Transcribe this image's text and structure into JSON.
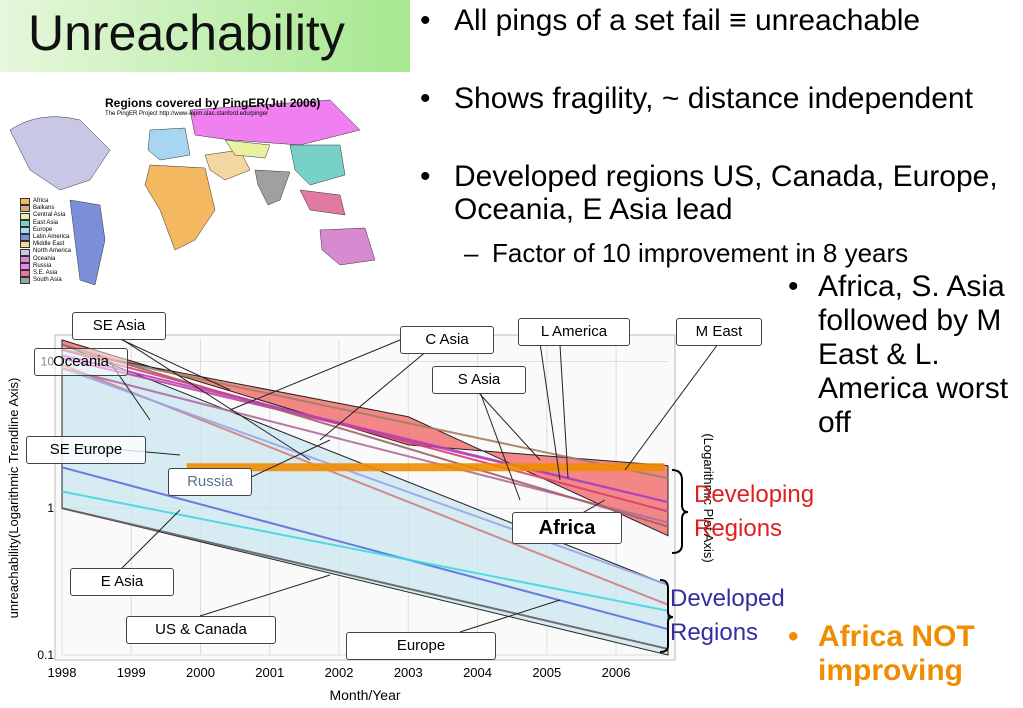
{
  "slide": {
    "title": "Unreachability",
    "bullets": [
      "All pings of a set fail ≡ unreachable",
      "Shows fragility, ~ distance independent",
      "Developed regions US, Canada, Europe, Oceania, E Asia lead"
    ],
    "sub_bullet": "Factor of 10 improvement in 8 years",
    "side_bullet": "Africa, S. Asia followed by M East & L. America worst off",
    "orange_bullet": "Africa NOT improving",
    "bullet_glyph": "•",
    "dash_glyph": "–"
  },
  "map": {
    "title": "Regions covered by PingER(Jul 2006)",
    "subtitle": "The PingER Project http://www-iepm.slac.stanford.edu/pinger",
    "legend": [
      {
        "label": "Africa",
        "color": "#f4b860"
      },
      {
        "label": "Balkans",
        "color": "#c8b27a"
      },
      {
        "label": "Central Asia",
        "color": "#e9f0a0"
      },
      {
        "label": "East Asia",
        "color": "#77d1c8"
      },
      {
        "label": "Europe",
        "color": "#a6d6f0"
      },
      {
        "label": "Latin America",
        "color": "#7a8fd8"
      },
      {
        "label": "Middle East",
        "color": "#f3d6a0"
      },
      {
        "label": "North America",
        "color": "#c8c8e6"
      },
      {
        "label": "Oceania",
        "color": "#d88ad0"
      },
      {
        "label": "Russia",
        "color": "#f080f0"
      },
      {
        "label": "S.E. Asia",
        "color": "#e07aa0"
      },
      {
        "label": "South Asia",
        "color": "#a0a0a0"
      }
    ]
  },
  "chart_data": {
    "type": "line",
    "xlabel": "Month/Year",
    "ylabel": "unreachability(Logarithmic Trendline Axis)",
    "y2label": "(Logarithmic Plot Axis)",
    "xticks": [
      "1998",
      "1999",
      "2000",
      "2001",
      "2002",
      "2003",
      "2004",
      "2005",
      "2006"
    ],
    "yticks": [
      "0.1",
      "1",
      "10"
    ],
    "yscale": "log",
    "xlim": [
      1998,
      2006.75
    ],
    "ylim": [
      0.1,
      14
    ],
    "grid": true,
    "series": [
      {
        "name": "Oceania",
        "color": "#d08080",
        "x": [
          1998,
          2006.75
        ],
        "y": [
          9.5,
          0.22
        ]
      },
      {
        "name": "SE Europe",
        "color": "#9aa4e8",
        "x": [
          1998,
          2006.75
        ],
        "y": [
          9.0,
          0.3
        ]
      },
      {
        "name": "E Asia",
        "color": "#5a6ee0",
        "x": [
          1998,
          2006.75
        ],
        "y": [
          1.9,
          0.15
        ]
      },
      {
        "name": "Europe",
        "color": "#40d8e0",
        "x": [
          1998,
          2006.75
        ],
        "y": [
          1.3,
          0.2
        ]
      },
      {
        "name": "US & Canada",
        "color": "#606060",
        "x": [
          1998,
          2006.75
        ],
        "y": [
          1.0,
          0.11
        ]
      },
      {
        "name": "Russia",
        "color": "#b06c9a",
        "x": [
          1998,
          2006.75
        ],
        "y": [
          9.0,
          0.8
        ]
      },
      {
        "name": "C Asia",
        "color": "#c0409a",
        "x": [
          1998,
          2006.75
        ],
        "y": [
          10.5,
          1.1
        ]
      },
      {
        "name": "S Asia",
        "color": "#a08060",
        "x": [
          1998,
          2006.75
        ],
        "y": [
          12,
          1.6
        ]
      },
      {
        "name": "SE Asia",
        "color": "#a0606a",
        "x": [
          1998,
          2006.75
        ],
        "y": [
          13,
          0.75
        ]
      },
      {
        "name": "L America",
        "color": "#d84070",
        "x": [
          1998,
          2006.75
        ],
        "y": [
          12,
          0.95
        ]
      },
      {
        "name": "M East",
        "color": "#b040c0",
        "x": [
          1998,
          2006.75
        ],
        "y": [
          11,
          1.1
        ]
      },
      {
        "name": "Africa",
        "color": "#f08c00",
        "x": [
          1999.8,
          2006.7
        ],
        "y": [
          1.9,
          1.9
        ]
      }
    ],
    "bands": [
      {
        "name": "Developing Regions",
        "color": "#f06060",
        "upper": [
          [
            1998,
            14
          ],
          [
            2003,
            2.7
          ],
          [
            2006.75,
            1.95
          ]
        ],
        "lower": [
          [
            1998,
            12
          ],
          [
            2003,
            4.2
          ],
          [
            2006.75,
            0.65
          ]
        ]
      },
      {
        "name": "Developed Regions",
        "color": "#c9e7ef",
        "upper": [
          [
            1998,
            13
          ],
          [
            2006.75,
            0.3
          ]
        ],
        "lower": [
          [
            1998,
            1.0
          ],
          [
            2006.75,
            0.1
          ]
        ]
      }
    ],
    "annotations": {
      "se_asia": "SE Asia",
      "c_asia": "C Asia",
      "l_america": "L America",
      "m_east": "M East",
      "s_asia": "S Asia",
      "oceania": "Oceania",
      "se_europe": "SE Europe",
      "russia": "Russia",
      "africa": "Africa",
      "e_asia": "E Asia",
      "us_canada": "US & Canada",
      "europe": "Europe",
      "developing": "Developing Regions",
      "developed": "Developed Regions"
    }
  }
}
